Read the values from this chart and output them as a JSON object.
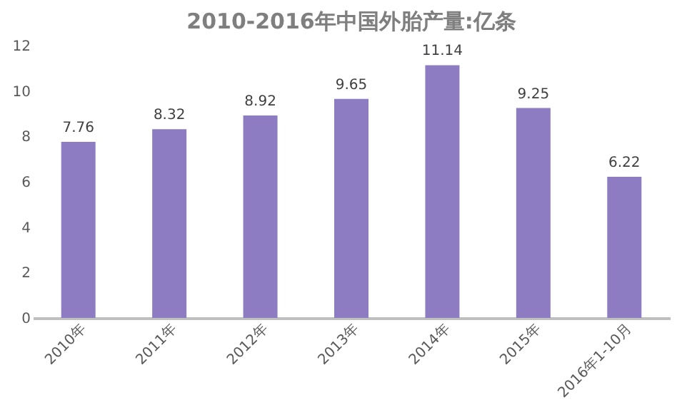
{
  "chart_data": {
    "type": "bar",
    "title": "2010-2016年中国外胎产量:亿条",
    "categories": [
      "2010年",
      "2011年",
      "2012年",
      "2013年",
      "2014年",
      "2015年",
      "2016年1-10月"
    ],
    "values": [
      7.76,
      8.32,
      8.92,
      9.65,
      11.14,
      9.25,
      6.22
    ],
    "color": "#8e7cc3",
    "ylim": [
      0,
      12
    ],
    "yticks": [
      0,
      2,
      4,
      6,
      8,
      10,
      12
    ],
    "grid": false,
    "data_labels": true
  }
}
